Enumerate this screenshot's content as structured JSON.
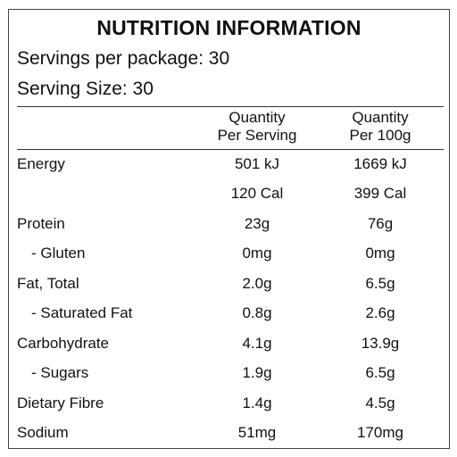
{
  "title": "NUTRITION INFORMATION",
  "servings_per_package": "Servings per package: 30",
  "serving_size": "Serving Size: 30",
  "columns": {
    "per_serving_line1": "Quantity",
    "per_serving_line2": "Per Serving",
    "per_100g_line1": "Quantity",
    "per_100g_line2": "Per 100g"
  },
  "rows": [
    {
      "label": "Energy",
      "per_serving": "501 kJ",
      "per_100g": "1669 kJ"
    },
    {
      "label": "",
      "per_serving": "120 Cal",
      "per_100g": "399 Cal"
    },
    {
      "label": "Protein",
      "per_serving": "23g",
      "per_100g": "76g"
    },
    {
      "label": "- Gluten",
      "per_serving": "0mg",
      "per_100g": "0mg"
    },
    {
      "label": "Fat, Total",
      "per_serving": "2.0g",
      "per_100g": "6.5g"
    },
    {
      "label": "- Saturated Fat",
      "per_serving": "0.8g",
      "per_100g": "2.6g"
    },
    {
      "label": "Carbohydrate",
      "per_serving": "4.1g",
      "per_100g": "13.9g"
    },
    {
      "label": "- Sugars",
      "per_serving": "1.9g",
      "per_100g": "6.5g"
    },
    {
      "label": "Dietary Fibre",
      "per_serving": "1.4g",
      "per_100g": "4.5g"
    },
    {
      "label": "Sodium",
      "per_serving": "51mg",
      "per_100g": "170mg"
    }
  ]
}
